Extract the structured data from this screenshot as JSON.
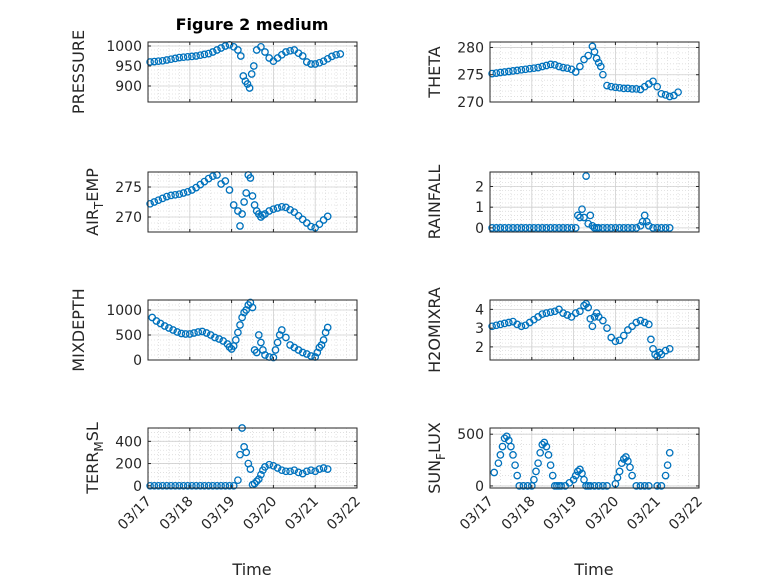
{
  "figure": {
    "title": "Figure 2 medium",
    "marker_color": "#0072BD",
    "x_tick_labels": [
      "03/17",
      "03/18",
      "03/19",
      "03/20",
      "03/21",
      "03/22"
    ],
    "x_label": "Time"
  },
  "chart_data": [
    {
      "type": "scatter",
      "ylabel": "PRESSURE",
      "xlim": [
        0,
        5
      ],
      "ylim": [
        860,
        1010
      ],
      "yticks": [
        900,
        950,
        1000
      ],
      "grid": true,
      "series": [
        {
          "x": [
            0.05,
            0.15,
            0.25,
            0.35,
            0.45,
            0.55,
            0.65,
            0.75,
            0.85,
            0.95,
            1.05,
            1.15,
            1.25,
            1.35,
            1.45,
            1.55,
            1.65,
            1.75,
            1.85,
            1.95,
            2.05,
            2.15,
            2.22,
            2.28,
            2.33,
            2.38,
            2.43,
            2.48,
            2.53,
            2.6,
            2.7,
            2.8,
            2.9,
            3.0,
            3.1,
            3.2,
            3.3,
            3.4,
            3.5,
            3.6,
            3.7,
            3.8,
            3.9,
            4.0,
            4.1,
            4.2,
            4.3,
            4.4,
            4.5,
            4.6
          ],
          "y": [
            960,
            961,
            962,
            963,
            965,
            967,
            969,
            971,
            972,
            973,
            974,
            975,
            977,
            979,
            981,
            985,
            990,
            995,
            1000,
            1003,
            998,
            990,
            975,
            925,
            912,
            905,
            895,
            930,
            950,
            990,
            998,
            985,
            970,
            962,
            970,
            978,
            985,
            988,
            990,
            982,
            975,
            960,
            955,
            955,
            958,
            962,
            968,
            974,
            978,
            980
          ]
        }
      ]
    },
    {
      "type": "scatter",
      "ylabel": "THETA",
      "xlim": [
        0,
        5
      ],
      "ylim": [
        270,
        281
      ],
      "yticks": [
        270,
        275,
        280
      ],
      "grid": true,
      "series": [
        {
          "x": [
            0.05,
            0.15,
            0.25,
            0.35,
            0.45,
            0.55,
            0.65,
            0.75,
            0.85,
            0.95,
            1.05,
            1.15,
            1.25,
            1.35,
            1.45,
            1.55,
            1.65,
            1.75,
            1.85,
            1.95,
            2.05,
            2.15,
            2.25,
            2.35,
            2.45,
            2.5,
            2.55,
            2.6,
            2.65,
            2.7,
            2.8,
            2.9,
            3.0,
            3.1,
            3.2,
            3.3,
            3.4,
            3.5,
            3.6,
            3.7,
            3.8,
            3.9,
            4.0,
            4.1,
            4.2,
            4.3,
            4.4,
            4.5
          ],
          "y": [
            275.2,
            275.3,
            275.4,
            275.5,
            275.6,
            275.7,
            275.8,
            275.9,
            276.0,
            276.1,
            276.2,
            276.3,
            276.5,
            276.7,
            276.9,
            276.8,
            276.5,
            276.3,
            276.2,
            276.0,
            275.5,
            276.5,
            277.8,
            278.5,
            280.2,
            279.2,
            278.0,
            277.2,
            276.5,
            275.0,
            273.0,
            272.8,
            272.7,
            272.6,
            272.5,
            272.5,
            272.4,
            272.4,
            272.3,
            272.8,
            273.3,
            273.8,
            272.8,
            271.5,
            271.3,
            271.0,
            271.2,
            271.8
          ]
        }
      ]
    },
    {
      "type": "scatter",
      "ylabel": "AIR_TEMP",
      "xlim": [
        0,
        5
      ],
      "ylim": [
        267.5,
        277.5
      ],
      "yticks": [
        270,
        275
      ],
      "grid": true,
      "series": [
        {
          "x": [
            0.05,
            0.15,
            0.25,
            0.35,
            0.45,
            0.55,
            0.65,
            0.75,
            0.85,
            0.95,
            1.05,
            1.15,
            1.25,
            1.35,
            1.45,
            1.55,
            1.65,
            1.75,
            1.85,
            1.95,
            2.05,
            2.15,
            2.2,
            2.25,
            2.3,
            2.35,
            2.4,
            2.45,
            2.5,
            2.55,
            2.6,
            2.65,
            2.7,
            2.75,
            2.8,
            2.9,
            3.0,
            3.1,
            3.2,
            3.3,
            3.4,
            3.5,
            3.6,
            3.7,
            3.8,
            3.9,
            4.0,
            4.1,
            4.2,
            4.3
          ],
          "y": [
            272.2,
            272.5,
            272.8,
            273.1,
            273.4,
            273.6,
            273.7,
            273.8,
            274.0,
            274.2,
            274.5,
            274.9,
            275.4,
            275.9,
            276.4,
            276.8,
            277.0,
            275.5,
            276.0,
            274.5,
            272.0,
            271.0,
            268.5,
            270.5,
            272.5,
            274.0,
            277.0,
            276.5,
            273.5,
            272.0,
            271.0,
            270.5,
            270.0,
            270.3,
            270.5,
            271.0,
            271.3,
            271.5,
            271.7,
            271.6,
            271.2,
            270.8,
            270.2,
            269.6,
            269.0,
            268.4,
            268.2,
            268.8,
            269.5,
            270.1
          ]
        }
      ]
    },
    {
      "type": "scatter",
      "ylabel": "RAINFALL",
      "xlim": [
        0,
        5
      ],
      "ylim": [
        -0.2,
        2.7
      ],
      "yticks": [
        0,
        1,
        2
      ],
      "grid": true,
      "series": [
        {
          "x": [
            0.05,
            0.15,
            0.25,
            0.35,
            0.45,
            0.55,
            0.65,
            0.75,
            0.85,
            0.95,
            1.05,
            1.15,
            1.25,
            1.35,
            1.45,
            1.55,
            1.65,
            1.75,
            1.85,
            1.95,
            2.05,
            2.1,
            2.15,
            2.2,
            2.25,
            2.3,
            2.35,
            2.4,
            2.45,
            2.5,
            2.55,
            2.6,
            2.7,
            2.8,
            2.9,
            3.0,
            3.1,
            3.2,
            3.3,
            3.4,
            3.5,
            3.6,
            3.65,
            3.7,
            3.75,
            3.8,
            3.9,
            4.0,
            4.1,
            4.2,
            4.3
          ],
          "y": [
            0,
            0,
            0,
            0,
            0,
            0,
            0,
            0,
            0,
            0,
            0,
            0,
            0,
            0,
            0,
            0,
            0,
            0,
            0,
            0,
            0,
            0.6,
            0.5,
            0.9,
            0.5,
            2.5,
            0.2,
            0.6,
            0.1,
            0,
            0,
            0,
            0,
            0,
            0,
            0,
            0,
            0,
            0,
            0,
            0,
            0.1,
            0.3,
            0.6,
            0.3,
            0.1,
            0,
            0,
            0,
            0,
            0
          ]
        }
      ]
    },
    {
      "type": "scatter",
      "ylabel": "MIXDEPTH",
      "xlim": [
        0,
        5
      ],
      "ylim": [
        0,
        1200
      ],
      "yticks": [
        0,
        500,
        1000
      ],
      "grid": true,
      "series": [
        {
          "x": [
            0.1,
            0.2,
            0.3,
            0.4,
            0.5,
            0.6,
            0.7,
            0.8,
            0.9,
            1.0,
            1.1,
            1.2,
            1.3,
            1.4,
            1.5,
            1.6,
            1.7,
            1.8,
            1.9,
            1.95,
            2.0,
            2.05,
            2.1,
            2.15,
            2.2,
            2.25,
            2.3,
            2.35,
            2.4,
            2.45,
            2.5,
            2.55,
            2.6,
            2.65,
            2.7,
            2.75,
            2.8,
            2.9,
            3.0,
            3.05,
            3.1,
            3.15,
            3.2,
            3.3,
            3.4,
            3.5,
            3.6,
            3.7,
            3.8,
            3.9,
            4.0,
            4.05,
            4.1,
            4.15,
            4.2,
            4.25,
            4.3
          ],
          "y": [
            850,
            780,
            730,
            680,
            640,
            600,
            560,
            530,
            520,
            520,
            540,
            560,
            570,
            540,
            500,
            450,
            420,
            380,
            320,
            260,
            220,
            280,
            400,
            550,
            700,
            850,
            950,
            1000,
            1100,
            1150,
            1050,
            200,
            150,
            500,
            350,
            200,
            100,
            60,
            50,
            200,
            350,
            500,
            600,
            450,
            300,
            250,
            200,
            150,
            120,
            80,
            60,
            150,
            250,
            300,
            400,
            550,
            650
          ]
        }
      ]
    },
    {
      "type": "scatter",
      "ylabel": "H2OMIXRA",
      "xlim": [
        0,
        5
      ],
      "ylim": [
        1.3,
        4.5
      ],
      "yticks": [
        2,
        3,
        4
      ],
      "grid": true,
      "series": [
        {
          "x": [
            0.05,
            0.15,
            0.25,
            0.35,
            0.45,
            0.55,
            0.65,
            0.75,
            0.85,
            0.95,
            1.05,
            1.15,
            1.25,
            1.35,
            1.45,
            1.55,
            1.65,
            1.75,
            1.85,
            1.95,
            2.05,
            2.15,
            2.25,
            2.3,
            2.35,
            2.4,
            2.45,
            2.5,
            2.55,
            2.6,
            2.7,
            2.8,
            2.9,
            3.0,
            3.1,
            3.2,
            3.3,
            3.4,
            3.5,
            3.6,
            3.7,
            3.8,
            3.85,
            3.9,
            3.95,
            4.0,
            4.05,
            4.1,
            4.2,
            4.3
          ],
          "y": [
            3.1,
            3.15,
            3.2,
            3.25,
            3.3,
            3.35,
            3.2,
            3.1,
            3.15,
            3.3,
            3.45,
            3.6,
            3.75,
            3.8,
            3.85,
            3.9,
            4.0,
            3.8,
            3.7,
            3.6,
            3.8,
            3.9,
            4.2,
            4.3,
            4.1,
            3.5,
            3.1,
            3.6,
            3.8,
            3.6,
            3.4,
            3.0,
            2.5,
            2.3,
            2.35,
            2.6,
            2.9,
            3.1,
            3.3,
            3.4,
            3.3,
            3.2,
            2.4,
            1.9,
            1.6,
            1.5,
            1.7,
            1.6,
            1.8,
            1.9
          ]
        }
      ]
    },
    {
      "type": "scatter",
      "ylabel": "TERR_MSL",
      "xlim": [
        0,
        5
      ],
      "ylim": [
        -20,
        520
      ],
      "yticks": [
        0,
        200,
        400
      ],
      "grid": true,
      "series": [
        {
          "x": [
            0.05,
            0.15,
            0.25,
            0.35,
            0.45,
            0.55,
            0.65,
            0.75,
            0.85,
            0.95,
            1.05,
            1.15,
            1.25,
            1.35,
            1.45,
            1.55,
            1.65,
            1.75,
            1.85,
            1.95,
            2.05,
            2.15,
            2.2,
            2.25,
            2.3,
            2.35,
            2.4,
            2.45,
            2.5,
            2.55,
            2.6,
            2.65,
            2.7,
            2.75,
            2.8,
            2.9,
            3.0,
            3.1,
            3.2,
            3.3,
            3.4,
            3.5,
            3.6,
            3.7,
            3.8,
            3.9,
            4.0,
            4.1,
            4.2,
            4.3
          ],
          "y": [
            0,
            0,
            0,
            0,
            0,
            0,
            0,
            0,
            0,
            0,
            0,
            0,
            0,
            0,
            0,
            0,
            0,
            0,
            0,
            0,
            0,
            50,
            280,
            520,
            350,
            300,
            200,
            150,
            10,
            20,
            40,
            60,
            100,
            140,
            170,
            190,
            180,
            160,
            140,
            130,
            130,
            140,
            120,
            110,
            130,
            140,
            130,
            150,
            160,
            150
          ]
        }
      ]
    },
    {
      "type": "scatter",
      "ylabel": "SUN_FLUX",
      "xlim": [
        0,
        5
      ],
      "ylim": [
        -20,
        560
      ],
      "yticks": [
        0,
        500
      ],
      "grid": true,
      "series": [
        {
          "x": [
            0.1,
            0.2,
            0.25,
            0.3,
            0.35,
            0.4,
            0.45,
            0.5,
            0.55,
            0.6,
            0.65,
            0.7,
            0.8,
            0.9,
            1.0,
            1.05,
            1.1,
            1.15,
            1.2,
            1.25,
            1.3,
            1.35,
            1.4,
            1.45,
            1.5,
            1.55,
            1.6,
            1.65,
            1.7,
            1.8,
            1.9,
            2.0,
            2.05,
            2.1,
            2.15,
            2.2,
            2.25,
            2.3,
            2.35,
            2.4,
            2.5,
            2.6,
            2.7,
            2.8,
            3.0,
            3.05,
            3.1,
            3.15,
            3.2,
            3.25,
            3.3,
            3.35,
            3.4,
            3.5,
            3.6,
            3.7,
            3.8,
            4.0,
            4.1,
            4.2,
            4.25,
            4.3
          ],
          "y": [
            130,
            220,
            300,
            380,
            460,
            480,
            440,
            380,
            300,
            200,
            100,
            0,
            0,
            0,
            0,
            60,
            140,
            220,
            320,
            400,
            420,
            380,
            300,
            200,
            100,
            0,
            0,
            0,
            0,
            0,
            30,
            60,
            100,
            140,
            160,
            120,
            60,
            0,
            0,
            0,
            0,
            0,
            0,
            0,
            20,
            80,
            140,
            220,
            260,
            280,
            240,
            180,
            100,
            0,
            0,
            0,
            0,
            0,
            0,
            100,
            200,
            320
          ]
        }
      ]
    }
  ]
}
